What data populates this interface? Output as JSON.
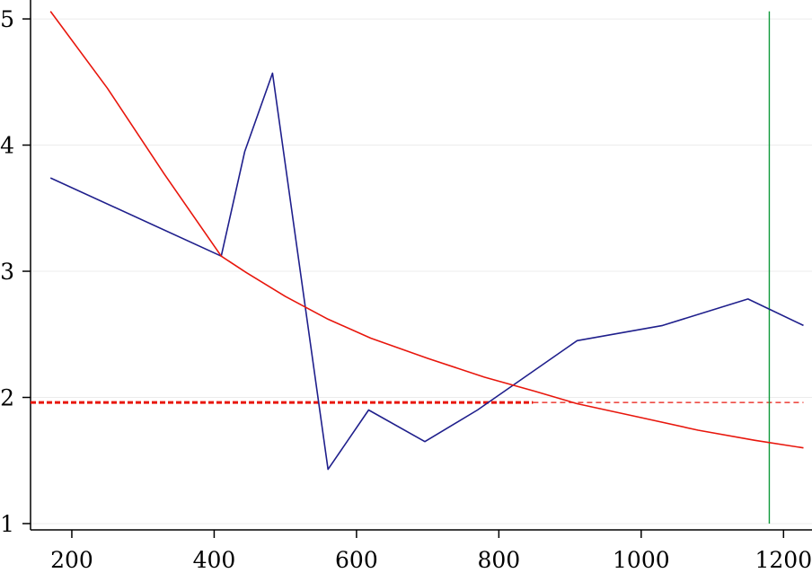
{
  "chart_data": {
    "type": "line",
    "title": "",
    "xlabel": "",
    "ylabel": "",
    "xlim": [
      142,
      1240
    ],
    "ylim": [
      0.95,
      5.15
    ],
    "xticks": [
      200,
      400,
      600,
      800,
      1000,
      1200
    ],
    "yticks": [
      1,
      2,
      3,
      4,
      5
    ],
    "xtick_labels": [
      "200",
      "400",
      "600",
      "800",
      "1000",
      "1200"
    ],
    "ytick_labels": [
      "1",
      "2",
      "3",
      "4",
      "5"
    ],
    "grid": true,
    "legend": "none",
    "series": [
      {
        "color": "#1f1f8c",
        "style": "solid",
        "x": [
          170,
          410,
          443,
          482,
          560,
          617,
          696,
          770,
          910,
          1030,
          1150,
          1228
        ],
        "y": [
          3.74,
          3.12,
          3.95,
          4.57,
          1.43,
          1.9,
          1.65,
          1.9,
          2.45,
          2.57,
          2.78,
          2.57
        ]
      },
      {
        "color": "#e8160c",
        "style": "solid",
        "x": [
          170,
          250,
          330,
          410,
          445,
          500,
          560,
          620,
          700,
          780,
          850,
          910,
          1000,
          1080,
          1160,
          1228
        ],
        "y": [
          5.06,
          4.45,
          3.77,
          3.12,
          2.99,
          2.8,
          2.62,
          2.47,
          2.31,
          2.16,
          2.05,
          1.95,
          1.84,
          1.74,
          1.66,
          1.6
        ]
      }
    ],
    "reference_lines": [
      {
        "orientation": "horizontal",
        "value": 1.96,
        "color": "#e8160c",
        "style": "dashed-heavy",
        "from": 142,
        "to": 848
      },
      {
        "orientation": "horizontal",
        "value": 1.96,
        "color": "#e8160c",
        "style": "dashed-light",
        "from": 848,
        "to": 1228
      },
      {
        "orientation": "vertical",
        "value": 1180,
        "color": "#0f9a3a",
        "style": "solid",
        "from": 1.0,
        "to": 5.06
      }
    ]
  }
}
